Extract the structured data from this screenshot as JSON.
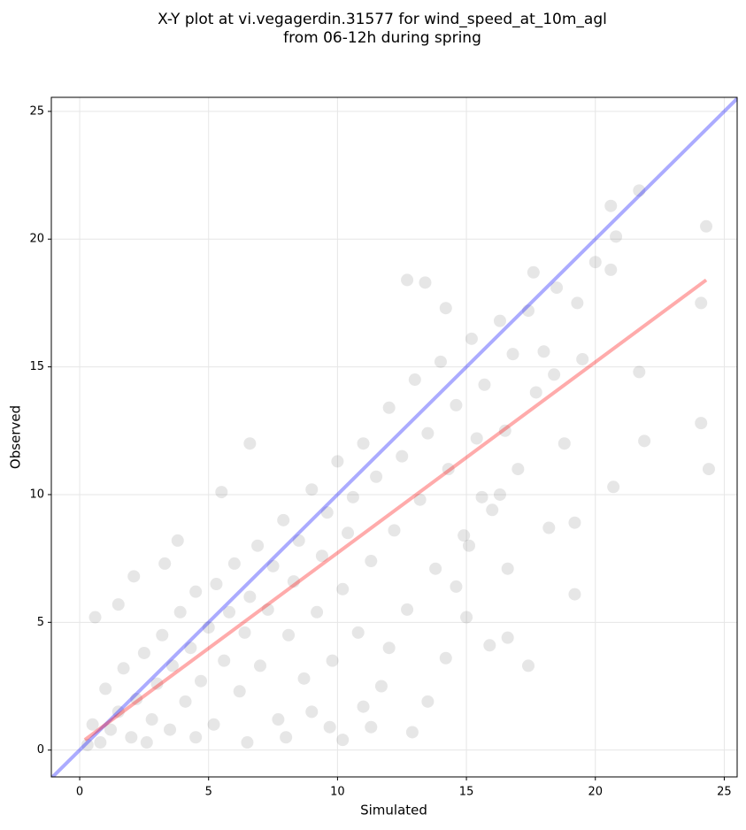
{
  "chart_data": {
    "type": "scatter",
    "title": "X-Y plot at vi.vegagerdin.31577 for wind_speed_at_10m_agl",
    "subtitle": "from 06-12h during spring",
    "x_label": "Simulated",
    "y_label": "Observed",
    "xlim": [
      -1.1,
      25.5
    ],
    "ylim": [
      -1.05,
      25.55
    ],
    "xticks": [
      0,
      5,
      10,
      15,
      20,
      25
    ],
    "yticks": [
      0,
      5,
      10,
      15,
      20,
      25
    ],
    "grid": true,
    "series": [
      {
        "color": "#555555",
        "x": [
          24.3,
          24.4,
          24.1,
          24.1,
          21.7,
          21.7,
          21.9,
          20.6,
          20.8,
          20.7,
          20.6,
          20.0,
          19.2,
          19.2,
          18.2,
          17.4,
          16.6,
          15.9,
          16.3,
          15.0,
          12.7,
          13.4,
          14.2,
          17.6,
          18.5,
          19.5,
          18.4,
          15.6,
          14.6,
          14.2,
          13.5,
          12.9,
          11.3,
          10.2,
          9.7,
          6.6,
          5.5,
          3.8,
          3.3,
          0.6,
          1.5,
          2.1,
          0.3,
          0.5,
          0.8,
          1.0,
          1.2,
          1.5,
          1.7,
          2.0,
          2.2,
          2.5,
          2.8,
          3.0,
          3.2,
          3.5,
          3.6,
          3.9,
          4.1,
          4.3,
          4.5,
          4.7,
          5.0,
          5.2,
          5.3,
          5.6,
          5.8,
          6.0,
          6.2,
          6.4,
          6.6,
          6.9,
          7.0,
          7.3,
          7.5,
          7.7,
          7.9,
          8.1,
          8.3,
          8.5,
          8.7,
          9.0,
          9.2,
          9.4,
          9.6,
          9.8,
          10.0,
          10.2,
          10.4,
          10.6,
          10.8,
          11.0,
          11.3,
          11.5,
          11.7,
          12.0,
          12.2,
          12.5,
          12.7,
          13.0,
          13.2,
          13.5,
          13.8,
          14.0,
          14.3,
          14.6,
          14.9,
          15.2,
          15.4,
          15.7,
          16.0,
          16.3,
          16.5,
          16.8,
          17.0,
          17.4,
          17.7,
          18.0,
          18.8,
          19.3,
          16.6,
          15.1,
          12.0,
          11.0,
          9.0,
          8.0,
          6.5,
          4.5,
          2.6
        ],
        "y": [
          20.5,
          11.0,
          17.5,
          12.8,
          21.9,
          14.8,
          12.1,
          21.3,
          20.1,
          10.3,
          18.8,
          19.1,
          6.1,
          8.9,
          8.7,
          3.3,
          4.4,
          4.1,
          10.0,
          5.2,
          18.4,
          18.3,
          17.3,
          18.7,
          18.1,
          15.3,
          14.7,
          9.9,
          6.4,
          3.6,
          1.9,
          0.7,
          0.9,
          0.4,
          0.9,
          12.0,
          10.1,
          8.2,
          7.3,
          5.2,
          5.7,
          6.8,
          0.2,
          1.0,
          0.3,
          2.4,
          0.8,
          1.5,
          3.2,
          0.5,
          2.0,
          3.8,
          1.2,
          2.6,
          4.5,
          0.8,
          3.3,
          5.4,
          1.9,
          4.0,
          6.2,
          2.7,
          4.8,
          1.0,
          6.5,
          3.5,
          5.4,
          7.3,
          2.3,
          4.6,
          6.0,
          8.0,
          3.3,
          5.5,
          7.2,
          1.2,
          9.0,
          4.5,
          6.6,
          8.2,
          2.8,
          10.2,
          5.4,
          7.6,
          9.3,
          3.5,
          11.3,
          6.3,
          8.5,
          9.9,
          4.6,
          12.0,
          7.4,
          10.7,
          2.5,
          13.4,
          8.6,
          11.5,
          5.5,
          14.5,
          9.8,
          12.4,
          7.1,
          15.2,
          11.0,
          13.5,
          8.4,
          16.1,
          12.2,
          14.3,
          9.4,
          16.8,
          12.5,
          15.5,
          11.0,
          17.2,
          14.0,
          15.6,
          12.0,
          17.5,
          7.1,
          8.0,
          4.0,
          1.7,
          1.5,
          0.5,
          0.3,
          0.5,
          0.3
        ]
      }
    ],
    "lines": [
      {
        "color": "#0000ff",
        "x": [
          -1.1,
          25.5
        ],
        "y": [
          -1.1,
          25.5
        ]
      },
      {
        "color": "#ff0000",
        "x": [
          0.2,
          24.3
        ],
        "y": [
          0.4,
          18.4
        ]
      }
    ]
  }
}
